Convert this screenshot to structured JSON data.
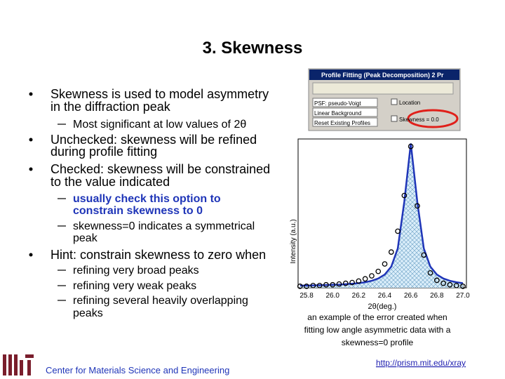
{
  "title": "3. Skewness",
  "bullets": [
    {
      "level": 1,
      "lines": [
        "Skewness is used to model asymmetry",
        "in the diffraction peak"
      ]
    },
    {
      "level": 2,
      "lines": [
        "Most significant at low values of 2θ"
      ]
    },
    {
      "level": 1,
      "lines": [
        "Unchecked: skewness will be refined",
        "during profile fitting"
      ]
    },
    {
      "level": 1,
      "lines": [
        "Checked: skewness will be constrained",
        "to the value indicated"
      ]
    },
    {
      "level": 2,
      "emphasis": true,
      "lines": [
        "usually check this option to",
        "constrain skewness to 0"
      ]
    },
    {
      "level": 2,
      "lines": [
        "skewness=0 indicates a symmetrical",
        "peak"
      ]
    },
    {
      "level": 1,
      "lines": [
        "Hint: constrain skewness to zero when"
      ]
    },
    {
      "level": 2,
      "lines": [
        "refining very broad peaks"
      ]
    },
    {
      "level": 2,
      "lines": [
        "refining very weak peaks"
      ]
    },
    {
      "level": 2,
      "lines": [
        "refining several heavily overlapping",
        "peaks"
      ]
    }
  ],
  "screenshot": {
    "title": "Profile Fitting (Peak Decomposition)   2 Pr",
    "fields": [
      "PSF: pseudo-Voigt",
      "Linear Background",
      "Reset Existing Profiles"
    ],
    "options": [
      "Location",
      "Skewness = 0.0"
    ]
  },
  "chart_data": {
    "type": "line",
    "ylabel": "Intensity (a.u.)",
    "xlabel": "2θ(deg.)",
    "x": [
      25.75,
      25.8,
      25.85,
      25.9,
      25.95,
      26.0,
      26.05,
      26.1,
      26.15,
      26.2,
      26.25,
      26.3,
      26.35,
      26.4,
      26.45,
      26.5,
      26.55,
      26.6,
      26.65,
      26.7,
      26.75,
      26.8,
      26.85,
      26.9,
      26.95,
      27.0
    ],
    "series": [
      {
        "color": "#000000",
        "values": [
          1,
          1,
          1.5,
          1.5,
          2,
          2,
          2.5,
          3,
          3.5,
          4.5,
          6,
          8,
          11,
          16,
          24,
          38,
          62,
          95,
          55,
          22,
          10,
          5,
          3,
          2,
          1.5,
          1
        ]
      },
      {
        "color": "#1f35b8",
        "values": [
          1.5,
          1.5,
          1.6,
          1.7,
          1.8,
          2.0,
          2.1,
          2.4,
          2.7,
          3.1,
          3.7,
          4.7,
          6.2,
          8.9,
          14.2,
          26.4,
          57.7,
          97,
          57.7,
          26.4,
          14.2,
          8.9,
          6.2,
          4.7,
          3.7,
          3.1
        ]
      }
    ],
    "xlim": [
      25.735,
      27.027
    ],
    "ylim": [
      0,
      100
    ],
    "xticks": [
      25.8,
      {
        "value": 26.0,
        "label": "26.0"
      },
      26.2,
      26.4,
      26.6,
      26.8,
      {
        "value": 27.0,
        "label": "27.0"
      }
    ]
  },
  "caption": [
    "an example of the error created when",
    "fitting low angle asymmetric data with a",
    "skewness=0 profile"
  ],
  "footer": {
    "center": "Center for Materials Science and Engineering",
    "link": "http://prism.mit.edu/xray"
  }
}
